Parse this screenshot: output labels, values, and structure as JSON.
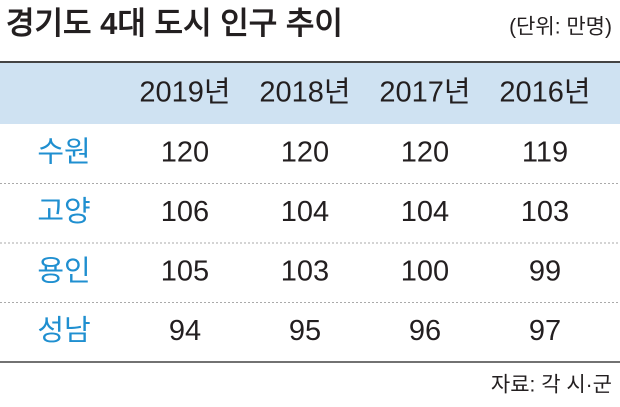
{
  "header": {
    "title": "경기도 4대 도시 인구 추이",
    "unit": "(단위: 만명)"
  },
  "table": {
    "columns": [
      "2019년",
      "2018년",
      "2017년",
      "2016년"
    ],
    "rows": [
      {
        "city": "수원",
        "values": [
          120,
          120,
          120,
          119
        ]
      },
      {
        "city": "고양",
        "values": [
          106,
          104,
          104,
          103
        ]
      },
      {
        "city": "용인",
        "values": [
          105,
          103,
          100,
          99
        ]
      },
      {
        "city": "성남",
        "values": [
          94,
          95,
          96,
          97
        ]
      }
    ]
  },
  "footer": {
    "source": "자료: 각 시·군"
  }
}
